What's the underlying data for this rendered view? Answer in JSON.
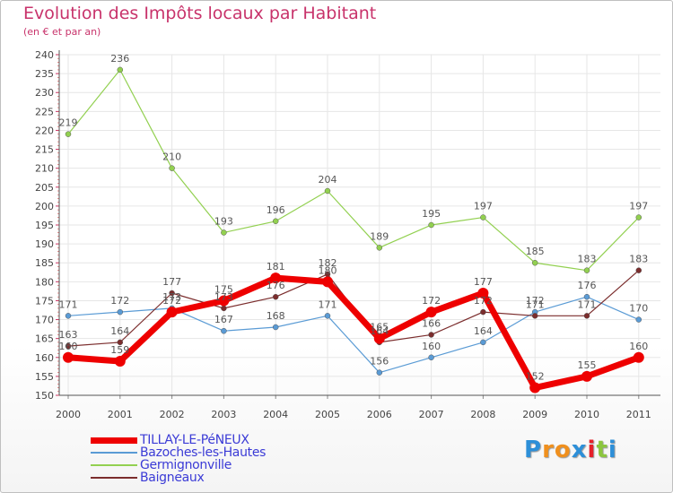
{
  "chart_data": {
    "type": "line",
    "title": "Evolution des Impôts locaux par Habitant",
    "subtitle": "(en € et par an)",
    "categories": [
      "2000",
      "2001",
      "2002",
      "2003",
      "2004",
      "2005",
      "2006",
      "2007",
      "2008",
      "2009",
      "2010",
      "2011"
    ],
    "ylim": [
      150,
      240
    ],
    "yticks": [
      150,
      155,
      160,
      165,
      170,
      175,
      180,
      185,
      190,
      195,
      200,
      205,
      210,
      215,
      220,
      225,
      230,
      235,
      240
    ],
    "grid": true,
    "legend_position": "bottom-left",
    "series": [
      {
        "name": "TILLAY-LE-PéNEUX",
        "color": "#ee0000",
        "values": [
          160,
          159,
          172,
          175,
          181,
          180,
          165,
          172,
          177,
          152,
          155,
          160
        ],
        "labels": [
          "160",
          "159",
          "172",
          "175",
          "181",
          "180",
          "165",
          "172",
          "177",
          "152",
          "155",
          "160"
        ]
      },
      {
        "name": "Bazoches-les-Hautes",
        "color": "#5a9bd5",
        "values": [
          171,
          172,
          173,
          167,
          168,
          171,
          156,
          160,
          164,
          172,
          176,
          170
        ],
        "labels": [
          "171",
          "172",
          "173",
          "167",
          "168",
          "171",
          "156",
          "160",
          "164",
          "172",
          "176",
          "170"
        ]
      },
      {
        "name": "Germignonville",
        "color": "#92d050",
        "values": [
          219,
          236,
          210,
          193,
          196,
          204,
          189,
          195,
          197,
          185,
          183,
          197
        ],
        "labels": [
          "219",
          "236",
          "210",
          "193",
          "196",
          "204",
          "189",
          "195",
          "197",
          "185",
          "183",
          "197"
        ]
      },
      {
        "name": "Baigneaux",
        "color": "#7b2d2d",
        "values": [
          163,
          164,
          177,
          173,
          176,
          182,
          164,
          166,
          172,
          171,
          171,
          183
        ],
        "labels": [
          "163",
          "164",
          "177",
          "173",
          "176",
          "182",
          "164",
          "166",
          "172",
          "171",
          "171",
          "183"
        ]
      }
    ]
  },
  "logo": {
    "letters": [
      "P",
      "r",
      "o",
      "x",
      "i",
      "t",
      "i"
    ],
    "colors": [
      "#2d8fd8",
      "#f0901e",
      "#f0901e",
      "#2d8fd8",
      "#e5202a",
      "#8cc63e",
      "#2d8fd8"
    ]
  }
}
